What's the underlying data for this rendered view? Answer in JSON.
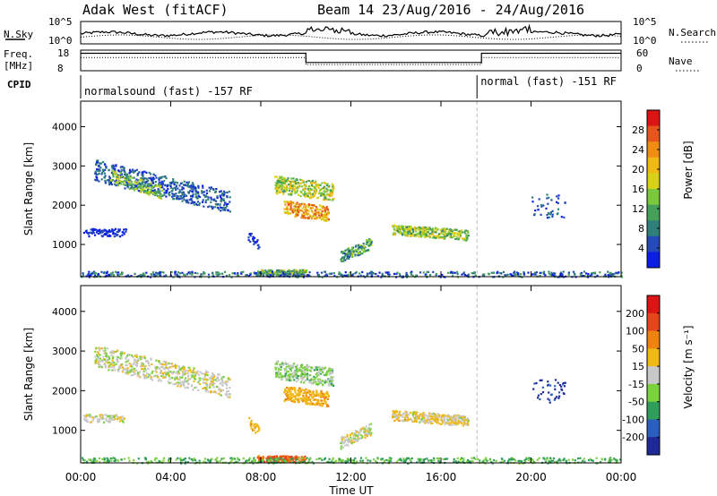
{
  "header": {
    "station": "Adak West (fitACF)",
    "beam_range": "Beam 14 23/Aug/2016 - 24/Aug/2016"
  },
  "strips": {
    "nsky_label": "N.Sky",
    "nsky_ticks": [
      "10^5",
      "10^0"
    ],
    "nsearch_label": "N.Search",
    "nsearch_ticks": [
      "10^5",
      "10^0"
    ],
    "freq_label": "Freq.",
    "freq_unit": "[MHz]",
    "freq_ticks": [
      "18",
      "8"
    ],
    "nave_label": "Nave",
    "nave_ticks": [
      "60",
      "0"
    ],
    "cpid_label": "CPID",
    "cpid_segments": [
      {
        "start_h": 0,
        "end_h": 17.6,
        "label": "normalsound (fast) -157 RF"
      },
      {
        "start_h": 17.6,
        "end_h": 24,
        "label": "normal (fast) -151 RF"
      }
    ],
    "freq_steps": [
      {
        "start_h": 0,
        "end_h": 10,
        "level": 0.85
      },
      {
        "start_h": 10,
        "end_h": 17.8,
        "level": 0.4
      },
      {
        "start_h": 17.8,
        "end_h": 24,
        "level": 0.85
      }
    ]
  },
  "chart_data": [
    {
      "type": "heatmap",
      "title": "Power",
      "colorbar_label": "Power [dB]",
      "colorbar_ticks": [
        "28",
        "24",
        "20",
        "16",
        "12",
        "8",
        "4"
      ],
      "colors": [
        "#0a1ee6",
        "#2449b8",
        "#2f7f7a",
        "#45a05a",
        "#7cc83c",
        "#d7d218",
        "#f0b914",
        "#f08c14",
        "#e6561c",
        "#dc1414"
      ],
      "ylabel": "Slant Range [km]",
      "yticks": [
        1000,
        2000,
        3000,
        4000
      ],
      "ylim": [
        180,
        4650
      ],
      "xlim_h": [
        0,
        24
      ],
      "regions": [
        {
          "t0": 0.6,
          "t1": 6.6,
          "r0": 2900,
          "r1": 2100,
          "w": 550,
          "v": 0.18,
          "dv": 0.12,
          "d": 0.55
        },
        {
          "t0": 1.3,
          "t1": 3.6,
          "r0": 2750,
          "r1": 2350,
          "w": 350,
          "v": 0.45,
          "dv": 0.15,
          "d": 0.45
        },
        {
          "t0": 0.1,
          "t1": 2.0,
          "r0": 1320,
          "r1": 1320,
          "w": 200,
          "v": 0.08,
          "dv": 0.05,
          "d": 0.5
        },
        {
          "t0": 7.4,
          "t1": 7.9,
          "r0": 1250,
          "r1": 1000,
          "w": 250,
          "v": 0.1,
          "dv": 0.08,
          "d": 0.5
        },
        {
          "t0": 7.8,
          "t1": 10.0,
          "r0": 300,
          "r1": 300,
          "w": 150,
          "v": 0.45,
          "dv": 0.2,
          "d": 0.9
        },
        {
          "t0": 8.6,
          "t1": 11.2,
          "r0": 2550,
          "r1": 2350,
          "w": 450,
          "v": 0.5,
          "dv": 0.2,
          "d": 0.8
        },
        {
          "t0": 9.0,
          "t1": 11.0,
          "r0": 1950,
          "r1": 1800,
          "w": 380,
          "v": 0.7,
          "dv": 0.2,
          "d": 0.85
        },
        {
          "t0": 11.5,
          "t1": 12.9,
          "r0": 700,
          "r1": 1050,
          "w": 300,
          "v": 0.35,
          "dv": 0.2,
          "d": 0.8
        },
        {
          "t0": 13.8,
          "t1": 17.2,
          "r0": 1400,
          "r1": 1250,
          "w": 260,
          "v": 0.45,
          "dv": 0.2,
          "d": 0.95
        },
        {
          "t0": 0.0,
          "t1": 24.0,
          "r0": 260,
          "r1": 260,
          "w": 140,
          "v": 0.2,
          "dv": 0.2,
          "d": 0.28
        },
        {
          "t0": 20.0,
          "t1": 21.5,
          "r0": 2000,
          "r1": 2000,
          "w": 600,
          "v": 0.15,
          "dv": 0.1,
          "d": 0.15
        }
      ]
    },
    {
      "type": "heatmap",
      "title": "Velocity",
      "colorbar_label": "Velocity [m s⁻¹]",
      "colorbar_ticks": [
        "200",
        "100",
        "50",
        "15",
        "-15",
        "-50",
        "-100",
        "-200"
      ],
      "colors": [
        "#1e2896",
        "#2a5fc0",
        "#2f9e5a",
        "#7cd23c",
        "#c8c8c8",
        "#f0b914",
        "#f0820f",
        "#e6461c",
        "#dc1414"
      ],
      "ylabel": "Slant Range [km]",
      "yticks": [
        1000,
        2000,
        3000,
        4000
      ],
      "ylim": [
        180,
        4650
      ],
      "xlim_h": [
        0,
        24
      ],
      "regions": [
        {
          "t0": 0.6,
          "t1": 6.6,
          "r0": 2900,
          "r1": 2100,
          "w": 550,
          "v": 0.5,
          "dv": 0.1,
          "d": 0.55
        },
        {
          "t0": 0.1,
          "t1": 2.0,
          "r0": 1320,
          "r1": 1320,
          "w": 200,
          "v": 0.5,
          "dv": 0.08,
          "d": 0.5
        },
        {
          "t0": 7.4,
          "t1": 7.9,
          "r0": 1250,
          "r1": 1000,
          "w": 250,
          "v": 0.62,
          "dv": 0.06,
          "d": 0.5
        },
        {
          "t0": 7.8,
          "t1": 10.0,
          "r0": 300,
          "r1": 300,
          "w": 150,
          "v": 0.8,
          "dv": 0.08,
          "d": 0.9
        },
        {
          "t0": 8.6,
          "t1": 11.2,
          "r0": 2550,
          "r1": 2350,
          "w": 450,
          "v": 0.42,
          "dv": 0.12,
          "d": 0.8
        },
        {
          "t0": 9.0,
          "t1": 11.0,
          "r0": 1950,
          "r1": 1800,
          "w": 380,
          "v": 0.64,
          "dv": 0.08,
          "d": 0.85
        },
        {
          "t0": 11.5,
          "t1": 12.9,
          "r0": 700,
          "r1": 1050,
          "w": 300,
          "v": 0.5,
          "dv": 0.1,
          "d": 0.8
        },
        {
          "t0": 13.8,
          "t1": 17.2,
          "r0": 1400,
          "r1": 1250,
          "w": 260,
          "v": 0.55,
          "dv": 0.12,
          "d": 0.95
        },
        {
          "t0": 0.0,
          "t1": 24.0,
          "r0": 260,
          "r1": 260,
          "w": 140,
          "v": 0.33,
          "dv": 0.1,
          "d": 0.28
        },
        {
          "t0": 20.0,
          "t1": 21.5,
          "r0": 2000,
          "r1": 2000,
          "w": 600,
          "v": 0.1,
          "dv": 0.08,
          "d": 0.15
        }
      ]
    }
  ],
  "xaxis": {
    "label": "Time UT",
    "ticks": [
      "00:00",
      "04:00",
      "08:00",
      "12:00",
      "16:00",
      "20:00",
      "00:00"
    ]
  }
}
